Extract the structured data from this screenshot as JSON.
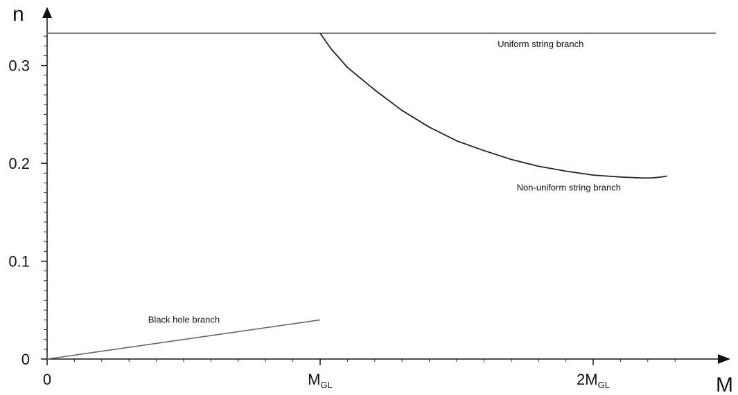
{
  "chart_data": {
    "type": "line",
    "xlabel": "M",
    "ylabel": "n",
    "xlim": [
      0,
      2.45
    ],
    "ylim": [
      0,
      0.333
    ],
    "x_ticks": [
      {
        "value": 0,
        "label": "0"
      },
      {
        "value": 1,
        "label": "M",
        "sub": "GL"
      },
      {
        "value": 2,
        "label": "2M",
        "sub": "GL"
      }
    ],
    "y_ticks": [
      {
        "value": 0,
        "label": "0"
      },
      {
        "value": 0.1,
        "label": "0.1"
      },
      {
        "value": 0.2,
        "label": "0.2"
      },
      {
        "value": 0.3,
        "label": "0.3"
      }
    ],
    "series": [
      {
        "name": "Uniform string branch",
        "color": "#555555",
        "points": [
          [
            0,
            0.333
          ],
          [
            2.45,
            0.333
          ]
        ]
      },
      {
        "name": "Non-uniform string branch",
        "color": "#222222",
        "points": [
          [
            1.0,
            0.333
          ],
          [
            1.04,
            0.317
          ],
          [
            1.1,
            0.298
          ],
          [
            1.2,
            0.275
          ],
          [
            1.3,
            0.254
          ],
          [
            1.4,
            0.237
          ],
          [
            1.5,
            0.223
          ],
          [
            1.6,
            0.213
          ],
          [
            1.7,
            0.204
          ],
          [
            1.8,
            0.197
          ],
          [
            1.9,
            0.192
          ],
          [
            2.0,
            0.188
          ],
          [
            2.1,
            0.186
          ],
          [
            2.18,
            0.185
          ],
          [
            2.21,
            0.185
          ],
          [
            2.25,
            0.186
          ],
          [
            2.27,
            0.187
          ]
        ]
      },
      {
        "name": "Black hole branch",
        "color": "#666666",
        "points": [
          [
            0,
            0
          ],
          [
            1.0,
            0.04
          ]
        ]
      }
    ],
    "annotations": [
      {
        "text": "Uniform string branch",
        "x": 1.65,
        "y": 0.319
      },
      {
        "text": "Non-uniform string branch",
        "x": 1.72,
        "y": 0.172
      },
      {
        "text": "Black hole branch",
        "x": 0.37,
        "y": 0.037
      }
    ]
  }
}
